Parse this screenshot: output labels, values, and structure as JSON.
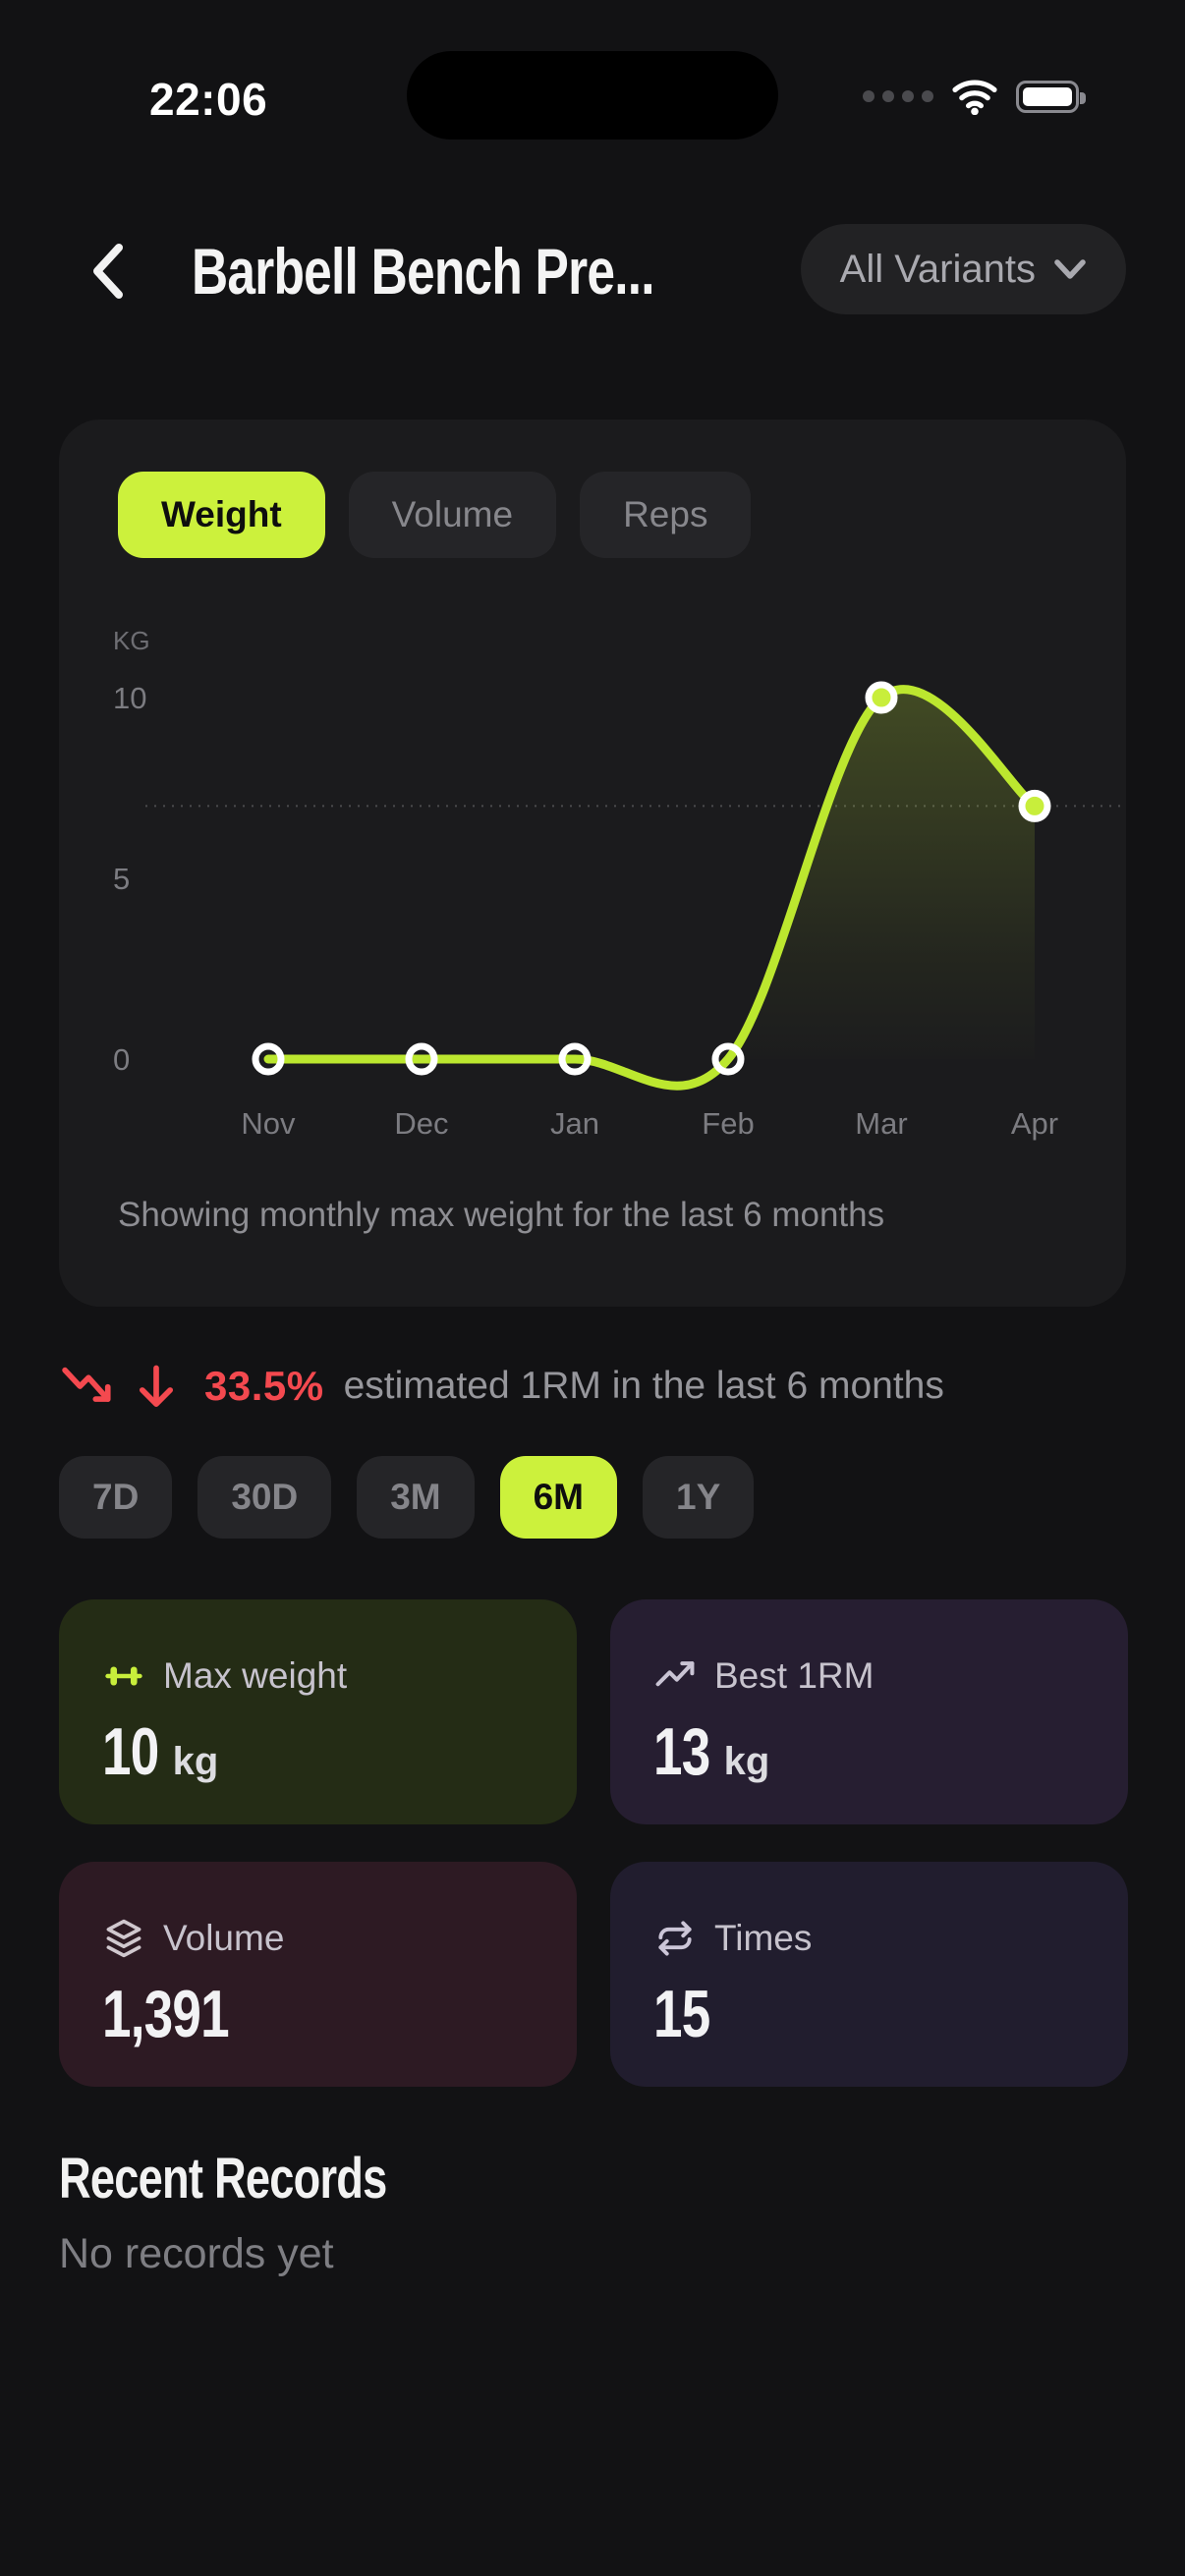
{
  "status_bar": {
    "time": "22:06"
  },
  "header": {
    "title": "Barbell Bench Pre...",
    "variant_selector": "All Variants"
  },
  "chart_card": {
    "tabs": [
      {
        "label": "Weight",
        "active": true
      },
      {
        "label": "Volume",
        "active": false
      },
      {
        "label": "Reps",
        "active": false
      }
    ],
    "caption": "Showing monthly max weight for the last 6 months"
  },
  "chart_data": {
    "type": "line",
    "title": "Monthly max weight",
    "unit_label": "KG",
    "x": [
      "Nov",
      "Dec",
      "Jan",
      "Feb",
      "Mar",
      "Apr"
    ],
    "values": [
      0,
      0,
      0,
      0,
      10,
      7
    ],
    "y_ticks": [
      0,
      5,
      10
    ],
    "ylim": [
      0,
      12
    ],
    "reference_value": 7,
    "grid": "off",
    "legend": "none",
    "line_color": "#bce72f",
    "point_color": "#c8ee3b",
    "point_ring_color": "#ffffff",
    "area_color": "#c6ee3a"
  },
  "trend": {
    "direction": "down",
    "value": "33.5%",
    "description": "estimated 1RM in the last 6 months",
    "color": "#f4494f"
  },
  "range_selector": [
    {
      "label": "7D",
      "active": false
    },
    {
      "label": "30D",
      "active": false
    },
    {
      "label": "3M",
      "active": false
    },
    {
      "label": "6M",
      "active": true
    },
    {
      "label": "1Y",
      "active": false
    }
  ],
  "stats": [
    {
      "icon": "dumbbell-icon",
      "label": "Max weight",
      "value": "10",
      "unit": "kg",
      "bg": "#242c15"
    },
    {
      "icon": "trending-up-icon",
      "label": "Best 1RM",
      "value": "13",
      "unit": "kg",
      "bg": "#261e31"
    },
    {
      "icon": "layers-icon",
      "label": "Volume",
      "value": "1,391",
      "unit": "",
      "bg": "#2d1a23"
    },
    {
      "icon": "repeat-icon",
      "label": "Times",
      "value": "15",
      "unit": "",
      "bg": "#211d2e"
    }
  ],
  "records": {
    "title": "Recent Records",
    "empty_text": "No records yet"
  },
  "colors": {
    "accent": "#ccf13c",
    "negative": "#f4494f",
    "page_bg": "#121214",
    "card_bg": "#1b1b1d"
  }
}
